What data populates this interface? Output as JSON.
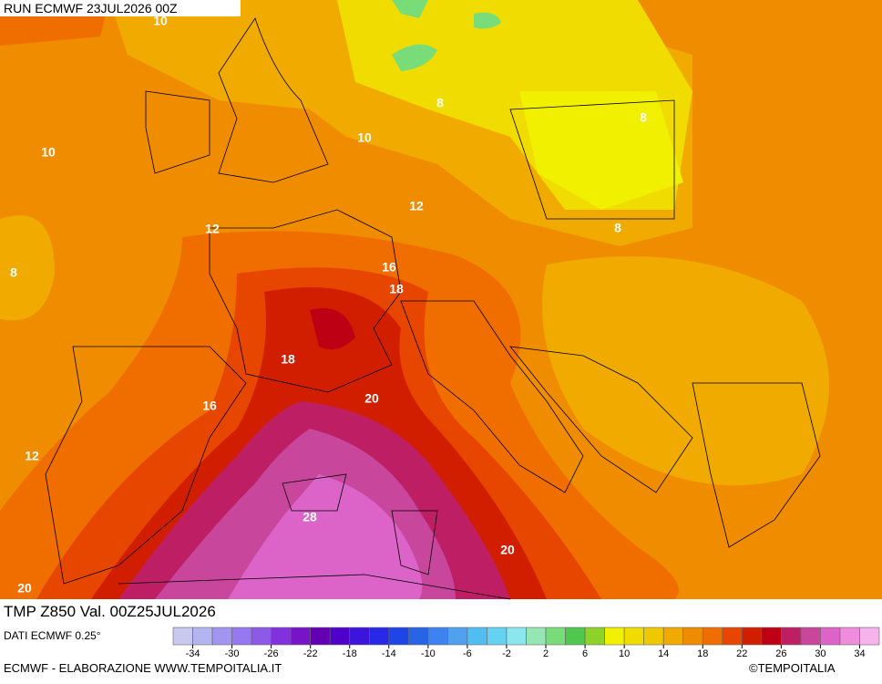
{
  "header": {
    "run": "RUN ECMWF 23JUL2026 00Z",
    "title": "TMP Z850 Val. 00Z25JUL2026"
  },
  "footer": {
    "source": "DATI ECMWF 0.25°",
    "credit": "ECMWF - ELABORAZIONE WWW.TEMPOITALIA.IT",
    "copyright": "©TEMPOITALIA"
  },
  "contour_labels": [
    "10",
    "10",
    "10",
    "8",
    "8",
    "8",
    "12",
    "12",
    "8",
    "16",
    "18",
    "18",
    "20",
    "16",
    "12",
    "28",
    "20",
    "20"
  ],
  "legend": {
    "colors": [
      "#c8c8f0",
      "#b4b4f0",
      "#a096f0",
      "#9678f0",
      "#8c5ae6",
      "#8232dc",
      "#7814c8",
      "#6400b4",
      "#5000c8",
      "#3c14dc",
      "#2828e6",
      "#1e46e6",
      "#2864e6",
      "#3c82f0",
      "#50a0f0",
      "#50bef0",
      "#64d2f0",
      "#8ce6f0",
      "#96e6b4",
      "#78dc78",
      "#50c850",
      "#8cd228",
      "#f0f000",
      "#f0dc00",
      "#f0c800",
      "#f0aa00",
      "#f08c00",
      "#f06e00",
      "#e64600",
      "#d21e00",
      "#be0014",
      "#be1e64",
      "#c8469b",
      "#dc64c8",
      "#f08cdc",
      "#f5b4eb"
    ],
    "range": [
      -36,
      36
    ],
    "ticks": [
      -34,
      -30,
      -26,
      -22,
      -18,
      -14,
      -10,
      -6,
      -2,
      2,
      6,
      10,
      14,
      18,
      22,
      26,
      30,
      34
    ]
  }
}
